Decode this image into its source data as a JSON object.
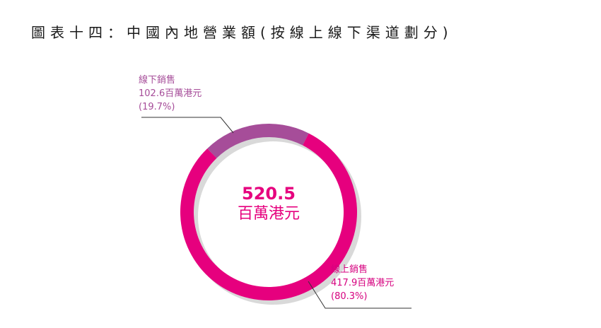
{
  "title": "圖表十四：中國內地營業額(按線上線下渠道劃分)",
  "chart_data": {
    "type": "pie",
    "donut": true,
    "title": "圖表十四：中國內地營業額(按線上線下渠道劃分)",
    "total": {
      "value": "520.5",
      "unit": "百萬港元"
    },
    "slices": [
      {
        "label": "線下銷售",
        "value": 102.6,
        "value_text": "102.6百萬港元",
        "percent_text": "(19.7%)",
        "color": "#a64d99"
      },
      {
        "label": "線上銷售",
        "value": 417.9,
        "value_text": "417.9百萬港元",
        "percent_text": "(80.3%)",
        "color": "#e6007e"
      }
    ],
    "shadow_color": "#d9d9d9"
  }
}
